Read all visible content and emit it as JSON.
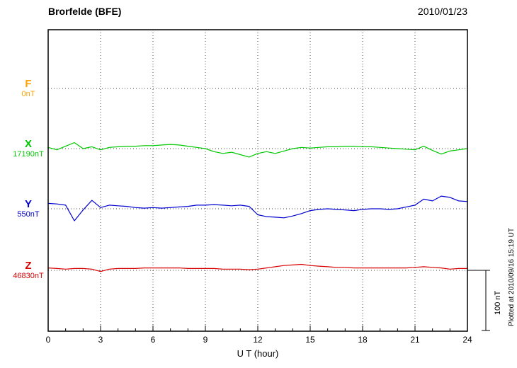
{
  "header": {
    "title": "Brorfelde (BFE)",
    "date": "2010/01/23"
  },
  "chart_data": {
    "type": "line",
    "title": "Brorfelde (BFE)",
    "date_label": "2010/01/23",
    "xlabel": "U T (hour)",
    "x_ticks": [
      0,
      3,
      6,
      9,
      12,
      15,
      18,
      21,
      24
    ],
    "x_range": [
      0,
      24
    ],
    "grid": "dotted vertical gridlines every 3 hours; dotted horizontal baseline per component",
    "legend_position": "left of plot, one colored label per component",
    "step_hours": 0.5,
    "scale_bar": {
      "label": "100 nT",
      "nT": 100
    },
    "plotted_note": "Plotted at 2010/09/16 15:19 UT",
    "series": [
      {
        "name": "F",
        "color": "#FFA000",
        "baseline_label": "0nT",
        "baseline_value": 0,
        "note": "no trace plotted (flat/no data)",
        "values": []
      },
      {
        "name": "X",
        "color": "#00C800",
        "baseline_label": "17190nT",
        "baseline_value": 17190,
        "values": [
          2,
          -2,
          4,
          10,
          0,
          3,
          -2,
          2,
          3,
          4,
          4,
          5,
          5,
          6,
          7,
          6,
          4,
          2,
          0,
          -5,
          -8,
          -6,
          -10,
          -14,
          -8,
          -5,
          -8,
          -4,
          0,
          2,
          1,
          2,
          3,
          3,
          4,
          4,
          3,
          3,
          2,
          1,
          0,
          -1,
          -2,
          4,
          -3,
          -9,
          -4,
          -2,
          0
        ]
      },
      {
        "name": "Y",
        "color": "#0000D0",
        "baseline_label": "550nT",
        "baseline_value": 550,
        "values": [
          9,
          8,
          6,
          -20,
          -2,
          14,
          2,
          6,
          5,
          4,
          2,
          1,
          2,
          1,
          2,
          3,
          4,
          6,
          6,
          7,
          6,
          5,
          6,
          4,
          -10,
          -13,
          -14,
          -15,
          -12,
          -8,
          -3,
          -1,
          0,
          -1,
          -2,
          -3,
          -1,
          0,
          0,
          -1,
          0,
          3,
          6,
          16,
          13,
          21,
          19,
          13,
          12
        ]
      },
      {
        "name": "Z",
        "color": "#D80000",
        "baseline_label": "46830nT",
        "baseline_value": 46830,
        "values": [
          4,
          3,
          2,
          3,
          3,
          2,
          -2,
          2,
          3,
          3,
          3,
          4,
          4,
          4,
          4,
          4,
          3,
          3,
          3,
          3,
          2,
          2,
          2,
          1,
          2,
          4,
          6,
          8,
          9,
          10,
          8,
          7,
          6,
          5,
          5,
          4,
          4,
          4,
          4,
          4,
          4,
          4,
          5,
          6,
          5,
          4,
          2,
          3,
          3
        ]
      }
    ]
  }
}
